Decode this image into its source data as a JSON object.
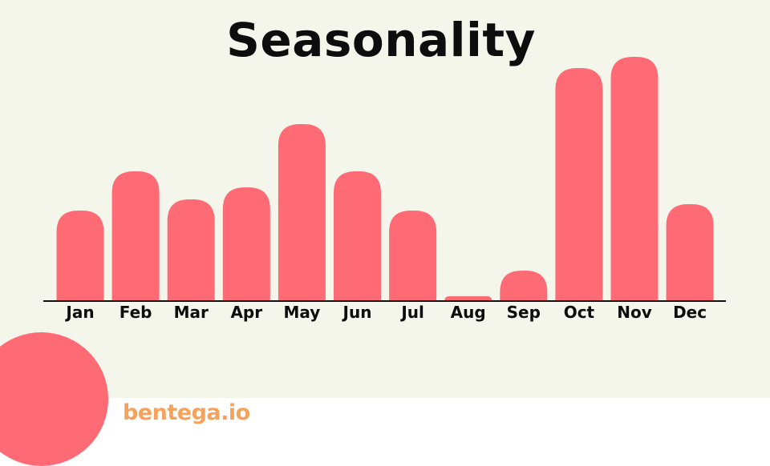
{
  "slide": {
    "title": "Seasonality",
    "logo_text": "bentega.io"
  },
  "colors": {
    "bar": "#ff6b75",
    "background": "#f4f6ec",
    "axis": "#111111",
    "text": "#0d0d0d",
    "logo": "#f5a35c",
    "decor_circle": "#ff6b75"
  },
  "chart_data": {
    "type": "bar",
    "categories": [
      "Jan",
      "Feb",
      "Mar",
      "Apr",
      "May",
      "Jun",
      "Jul",
      "Aug",
      "Sep",
      "Oct",
      "Nov",
      "Dec"
    ],
    "values": [
      113,
      162,
      127,
      142,
      221,
      162,
      113,
      6,
      38,
      291,
      305,
      121
    ],
    "title": "Seasonality",
    "xlabel": "",
    "ylabel": "",
    "ylim": [
      0,
      305
    ],
    "grid": false,
    "legend": "none"
  }
}
